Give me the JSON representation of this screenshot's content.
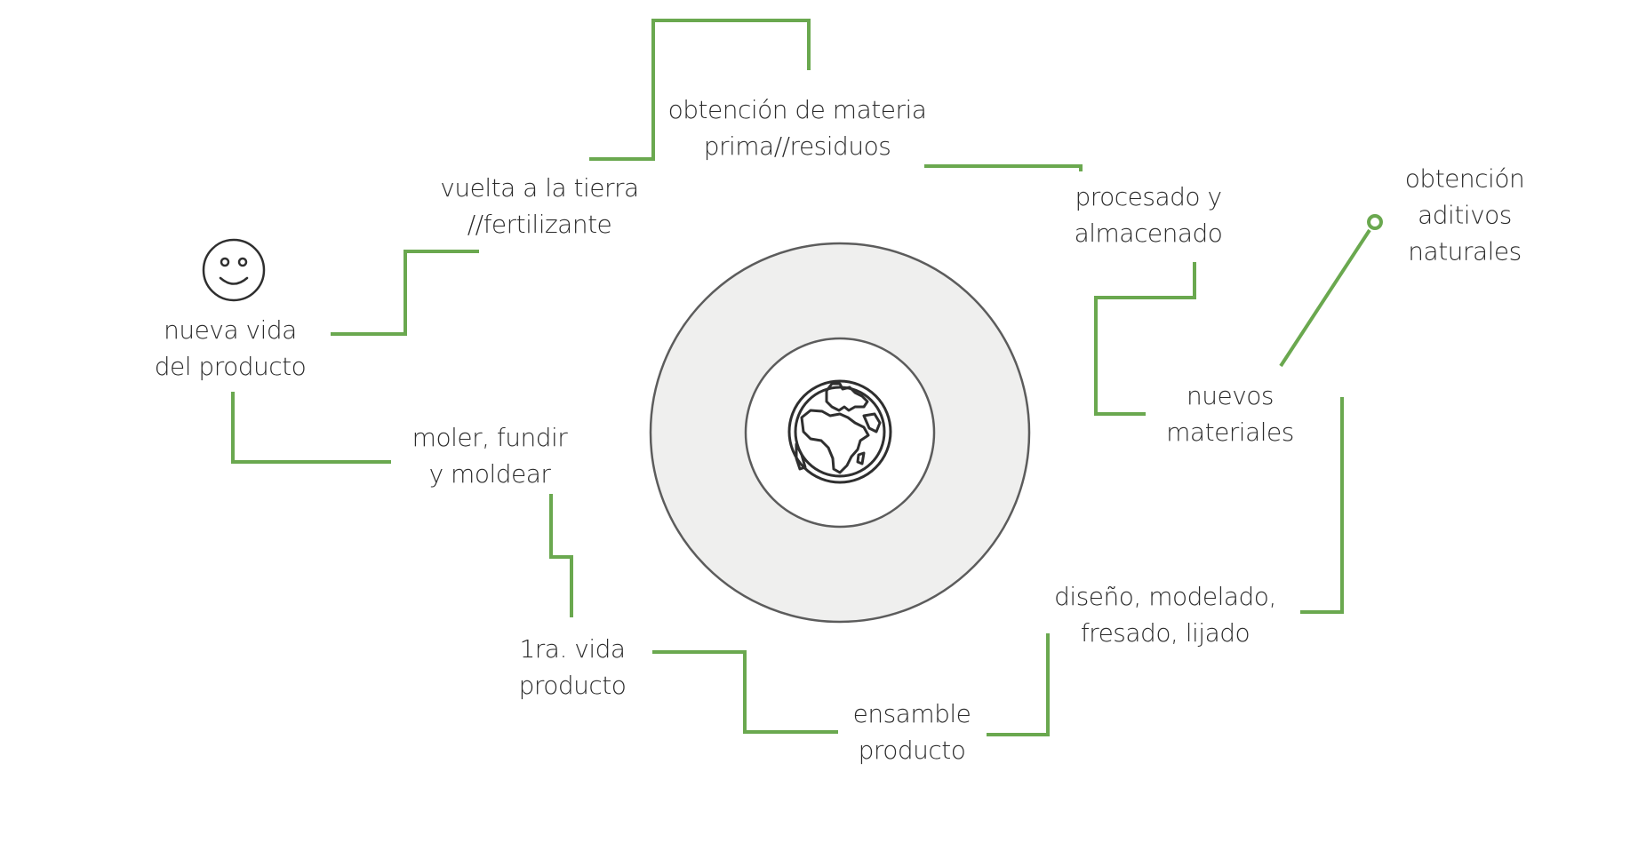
{
  "colors": {
    "connector": "#6aa84f",
    "ring_fill": "#efefee",
    "ring_stroke": "#5c5c5c",
    "icon_stroke": "#2f2f2f",
    "text": "#2b2b2b",
    "background": "#ffffff"
  },
  "center": {
    "icon": "globe-icon"
  },
  "user_icon": "smiley-face-icon",
  "steps": {
    "raw_material": [
      "obtención de materia",
      "prima//residuos"
    ],
    "processing": [
      "procesado y",
      "almacenado"
    ],
    "additives": [
      "obtención",
      "aditivos",
      "naturales"
    ],
    "new_materials": [
      "nuevos",
      "materiales"
    ],
    "design": [
      "diseño, modelado,",
      "fresado, lijado"
    ],
    "assembly": [
      "ensamble",
      "producto"
    ],
    "first_life": [
      "1ra. vida",
      "producto"
    ],
    "grind": [
      "moler, fundir",
      "y moldear"
    ],
    "new_life": [
      "nueva vida",
      "del producto"
    ],
    "return_to_earth": [
      "vuelta a la tierra",
      "//fertilizante"
    ]
  }
}
